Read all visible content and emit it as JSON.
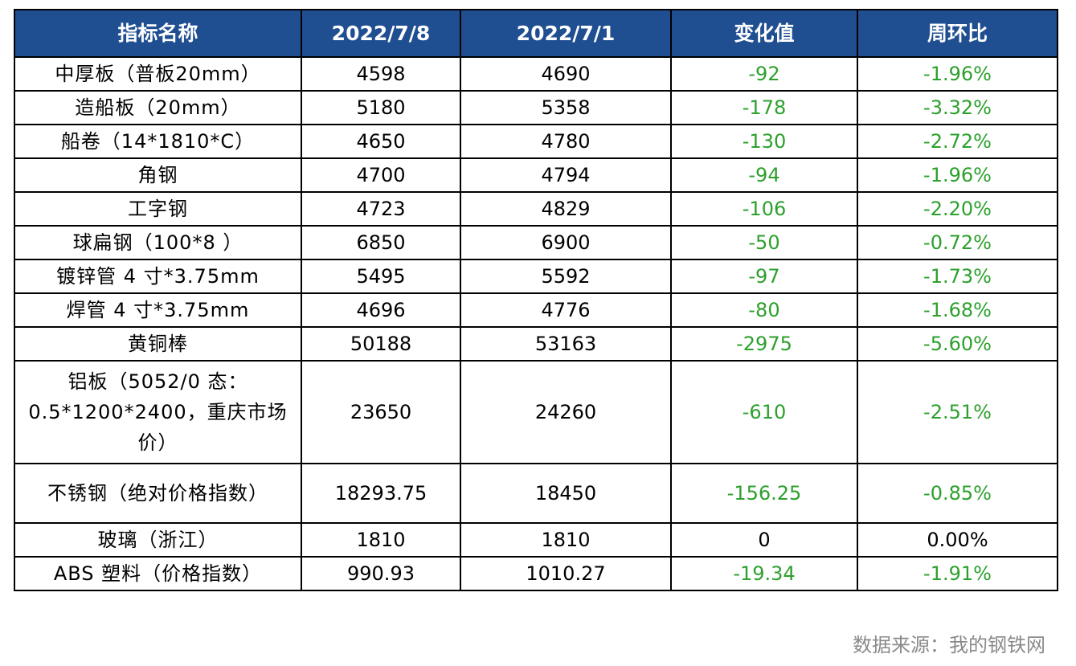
{
  "headers": [
    "指标名称",
    "2022/7/8",
    "2022/7/1",
    "变化值",
    "周环比"
  ],
  "rows": [
    {
      "name": "中厚板（普板20mm）",
      "cur": "4598",
      "prev": "4690",
      "chg": "-92",
      "pct": "-1.96%",
      "color": "green"
    },
    {
      "name": "造船板（20mm）",
      "cur": "5180",
      "prev": "5358",
      "chg": "-178",
      "pct": "-3.32%",
      "color": "green"
    },
    {
      "name": "船卷（14*1810*C）",
      "cur": "4650",
      "prev": "4780",
      "chg": "-130",
      "pct": "-2.72%",
      "color": "green"
    },
    {
      "name": "角钢",
      "cur": "4700",
      "prev": "4794",
      "chg": "-94",
      "pct": "-1.96%",
      "color": "green"
    },
    {
      "name": "工字钢",
      "cur": "4723",
      "prev": "4829",
      "chg": "-106",
      "pct": "-2.20%",
      "color": "green"
    },
    {
      "name": "球扁钢（100*8 ）",
      "cur": "6850",
      "prev": "6900",
      "chg": "-50",
      "pct": "-0.72%",
      "color": "green"
    },
    {
      "name": "镀锌管 4 寸*3.75mm",
      "cur": "5495",
      "prev": "5592",
      "chg": "-97",
      "pct": "-1.73%",
      "color": "green"
    },
    {
      "name": "焊管 4 寸*3.75mm",
      "cur": "4696",
      "prev": "4776",
      "chg": "-80",
      "pct": "-1.68%",
      "color": "green"
    },
    {
      "name": "黄铜棒",
      "cur": "50188",
      "prev": "53163",
      "chg": "-2975",
      "pct": "-5.60%",
      "color": "green"
    },
    {
      "name": "铝板（5052/0 态：0.5*1200*2400，重庆市场价）",
      "cur": "23650",
      "prev": "24260",
      "chg": "-610",
      "pct": "-2.51%",
      "color": "green",
      "tall": "tall3"
    },
    {
      "name": "不锈钢（绝对价格指数）",
      "cur": "18293.75",
      "prev": "18450",
      "chg": "-156.25",
      "pct": "-0.85%",
      "color": "green",
      "tall": "tall2"
    },
    {
      "name": "玻璃（浙江）",
      "cur": "1810",
      "prev": "1810",
      "chg": "0",
      "pct": "0.00%",
      "color": "black"
    },
    {
      "name": "ABS 塑料（价格指数）",
      "cur": "990.93",
      "prev": "1010.27",
      "chg": "-19.34",
      "pct": "-1.91%",
      "color": "green"
    }
  ],
  "source": "数据来源：我的钢铁网",
  "colors": {
    "header_bg": "#1f4e91",
    "negative": "#2ca02c"
  }
}
